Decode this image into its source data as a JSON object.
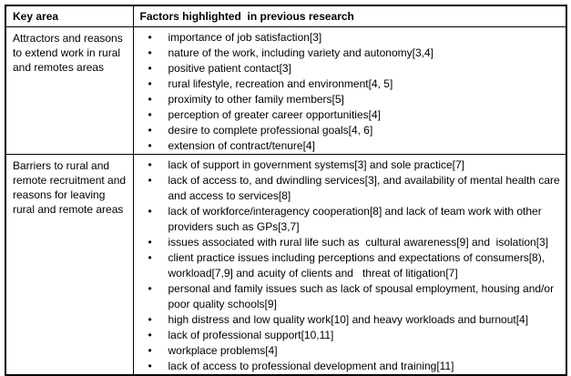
{
  "colors": {
    "border": "#000000",
    "text": "#000000",
    "background": "#ffffff"
  },
  "icons": {
    "bullet": "•"
  },
  "table": {
    "header": {
      "col1": "Key area",
      "col2": "Factors highlighted  in previous research"
    },
    "rows": [
      {
        "key_area": "Attractors and reasons to extend work in rural and remotes areas",
        "factors": [
          "importance of job satisfaction[3]",
          "nature of the work, including variety and autonomy[3,4]",
          "positive patient contact[3]",
          "rural lifestyle, recreation and environment[4, 5]",
          "proximity to other family members[5]",
          "perception of greater career opportunities[4]",
          "desire to complete professional goals[4, 6]",
          "extension of contract/tenure[4]"
        ]
      },
      {
        "key_area": "Barriers to rural and remote recruitment and reasons for leaving rural and remote areas",
        "factors": [
          "lack of support in government systems[3] and sole practice[7]",
          "lack of access to, and dwindling services[3], and availability of mental health care and access to services[8]",
          "lack of workforce/interagency cooperation[8] and lack of team work with other providers such as GPs[3,7]",
          "issues associated with rural life such as  cultural awareness[9] and  isolation[3]",
          "client practice issues including perceptions and expectations of consumers[8), workload[7,9] and acuity of clients and   threat of litigation[7]",
          "personal and family issues such as lack of spousal employment, housing and/or poor quality schools[9]",
          "high distress and low quality work[10] and heavy workloads and burnout[4]",
          "lack of professional support[10,11]",
          "workplace problems[4]",
          "lack of access to professional development and training[11]"
        ]
      }
    ]
  }
}
